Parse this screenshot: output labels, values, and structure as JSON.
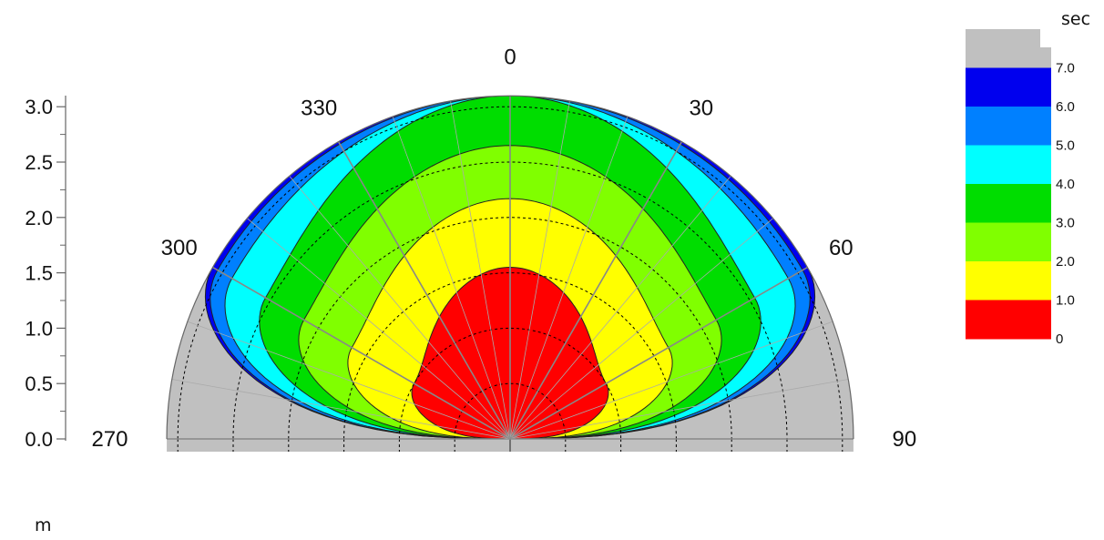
{
  "chart_data": {
    "type": "heatmap",
    "subtype": "polar-contour",
    "r_axis": {
      "ticks": [
        "0.0",
        "0.5",
        "1.0",
        "1.5",
        "2.0",
        "2.5",
        "3.0"
      ],
      "range": [
        0,
        3.1
      ],
      "unit_label": "m"
    },
    "angle_axis": {
      "labels": [
        "270",
        "300",
        "330",
        "0",
        "30",
        "60",
        "90"
      ],
      "range_deg": [
        270,
        90
      ]
    },
    "colorbar": {
      "unit_label": "sec",
      "tick_labels": [
        "7.0",
        "6.0",
        "5.0",
        "4.0",
        "3.0",
        "2.0",
        "1.0",
        "0"
      ],
      "levels": [
        {
          "range": "0-1.0",
          "color": "#ff0000"
        },
        {
          "range": "1.0-2.0",
          "color": "#ffff00"
        },
        {
          "range": "2.0-3.0",
          "color": "#80ff00"
        },
        {
          "range": "3.0-4.0",
          "color": "#00dd00"
        },
        {
          "range": "4.0-5.0",
          "color": "#00ffff"
        },
        {
          "range": "5.0-6.0",
          "color": "#0080ff"
        },
        {
          "range": "6.0-7.0",
          "color": "#0000ee"
        },
        {
          "range": ">7.0",
          "color": "#c0c0c0"
        }
      ]
    },
    "contours": [
      {
        "level": "1.0",
        "color": "#ff0000",
        "r_at_0deg": 1.55,
        "r_at_60deg": 1.0,
        "r_at_90deg": 0.0
      },
      {
        "level": "2.0",
        "color": "#ffff00",
        "r_at_0deg": 2.17,
        "r_at_60deg": 1.65,
        "r_at_90deg": 0.0
      },
      {
        "level": "3.0",
        "color": "#80ff00",
        "r_at_0deg": 2.65,
        "r_at_60deg": 2.15,
        "r_at_90deg": 0.0
      },
      {
        "level": "4.0",
        "color": "#00dd00",
        "r_at_0deg": 3.1,
        "r_at_60deg": 2.55,
        "r_at_90deg": 0.0
      },
      {
        "level": "5.0",
        "color": "#00ffff",
        "r_at_0deg": 3.1,
        "r_at_60deg": 2.9,
        "r_at_90deg": 0.0
      },
      {
        "level": "6.0",
        "color": "#0080ff",
        "r_at_0deg": 3.1,
        "r_at_60deg": 3.05,
        "r_at_90deg": 0.0
      },
      {
        "level": "7.0",
        "color": "#0000ee",
        "r_at_0deg": 3.1,
        "r_at_60deg": 3.1,
        "r_at_90deg": 0.0
      }
    ],
    "background_color": "#c0c0c0"
  }
}
